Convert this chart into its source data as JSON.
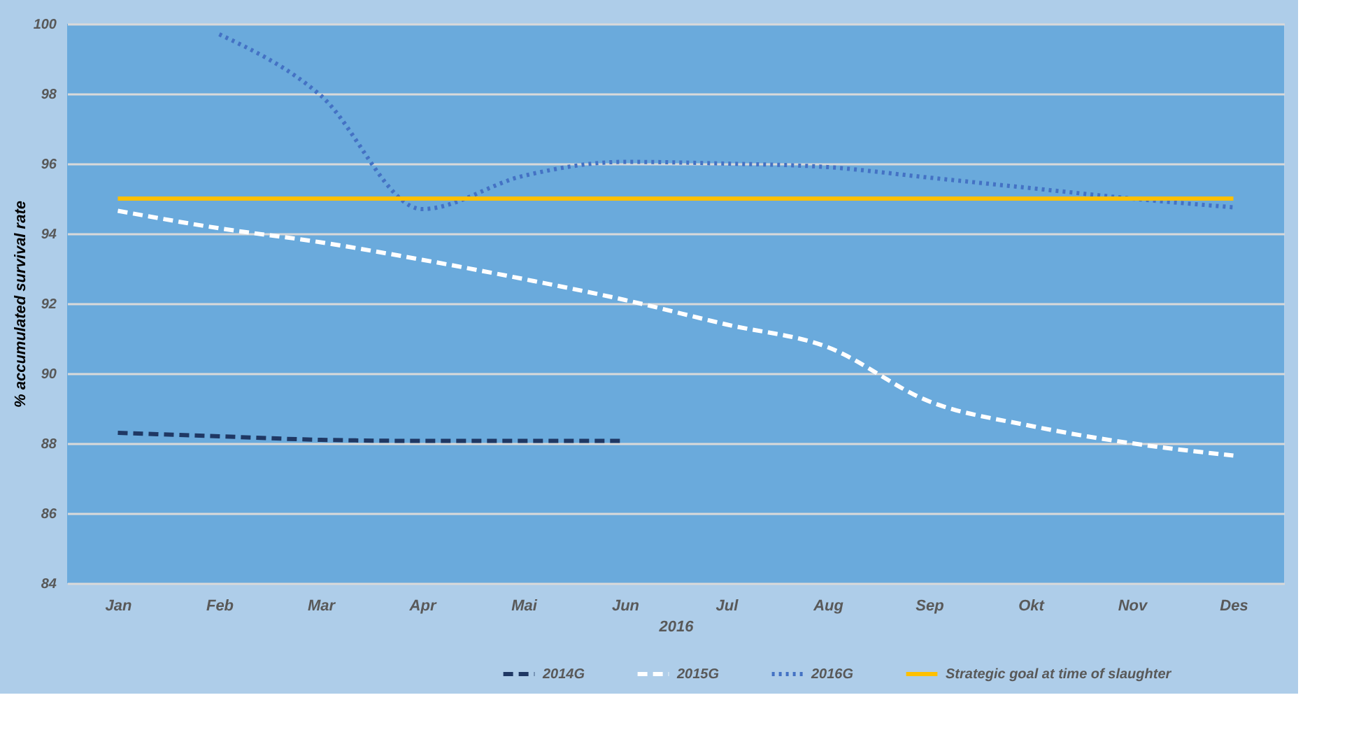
{
  "chart_data": {
    "type": "line",
    "xlabel": "2016",
    "ylabel": "% accumulated survival rate",
    "categories": [
      "Jan",
      "Feb",
      "Mar",
      "Apr",
      "Mai",
      "Jun",
      "Jul",
      "Aug",
      "Sep",
      "Okt",
      "Nov",
      "Des"
    ],
    "series": [
      {
        "name": "2014G",
        "color": "#1f3864",
        "line_style": "dashed",
        "values": [
          88.3,
          88.2,
          88.1,
          88.07,
          88.07,
          88.07,
          null,
          null,
          null,
          null,
          null,
          null
        ]
      },
      {
        "name": "2015G",
        "color": "#ffffff",
        "line_style": "dashed",
        "values": [
          94.65,
          94.15,
          93.75,
          93.25,
          92.7,
          92.1,
          91.4,
          90.75,
          89.2,
          88.5,
          88.0,
          87.65
        ]
      },
      {
        "name": "2016G",
        "color": "#4472c4",
        "line_style": "dotted",
        "values": [
          null,
          99.7,
          97.95,
          94.7,
          95.65,
          96.05,
          96.0,
          95.9,
          95.6,
          95.3,
          95.0,
          94.75
        ]
      },
      {
        "name": "Strategic goal at time of slaughter",
        "color": "#ffc000",
        "line_style": "solid",
        "values": [
          95,
          95,
          95,
          95,
          95,
          95,
          95,
          95,
          95,
          95,
          95,
          95
        ]
      }
    ],
    "ylim": [
      84,
      100
    ],
    "yticks": [
      84,
      86,
      88,
      90,
      92,
      94,
      96,
      98,
      100
    ],
    "grid": "y",
    "legend": "bottom right",
    "marker": "none"
  }
}
